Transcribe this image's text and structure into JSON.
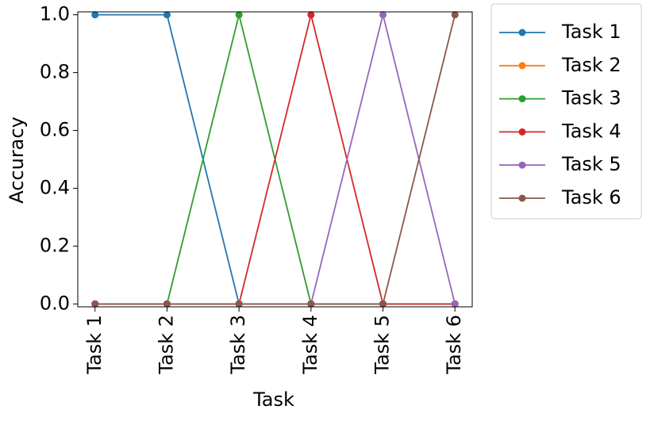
{
  "chart_data": {
    "type": "line",
    "x_label": "Task",
    "y_label": "Accuracy",
    "categories": [
      "Task 1",
      "Task 2",
      "Task 3",
      "Task 4",
      "Task 5",
      "Task 6"
    ],
    "series": [
      {
        "name": "Task 1",
        "color": "#1f77b4",
        "values": [
          1,
          1,
          0,
          0,
          0,
          0
        ]
      },
      {
        "name": "Task 2",
        "color": "#ff7f0e",
        "values": [
          0,
          0,
          0,
          0,
          0,
          0
        ]
      },
      {
        "name": "Task 3",
        "color": "#2ca02c",
        "values": [
          0,
          0,
          1,
          0,
          0,
          0
        ]
      },
      {
        "name": "Task 4",
        "color": "#d62728",
        "values": [
          0,
          0,
          0,
          1,
          0,
          0
        ]
      },
      {
        "name": "Task 5",
        "color": "#9467bd",
        "values": [
          0,
          0,
          0,
          0,
          1,
          0
        ]
      },
      {
        "name": "Task 6",
        "color": "#8c564b",
        "values": [
          0,
          0,
          0,
          0,
          0,
          1
        ]
      }
    ],
    "ylim": [
      -0.01,
      1.01
    ],
    "yticks": [
      {
        "value": 0,
        "label": "0.0"
      },
      {
        "value": 0.2,
        "label": "0.2"
      },
      {
        "value": 0.4,
        "label": "0.4"
      },
      {
        "value": 0.6,
        "label": "0.6"
      },
      {
        "value": 0.8,
        "label": "0.8"
      },
      {
        "value": 1,
        "label": "1.0"
      }
    ],
    "legend": "outside-right"
  }
}
